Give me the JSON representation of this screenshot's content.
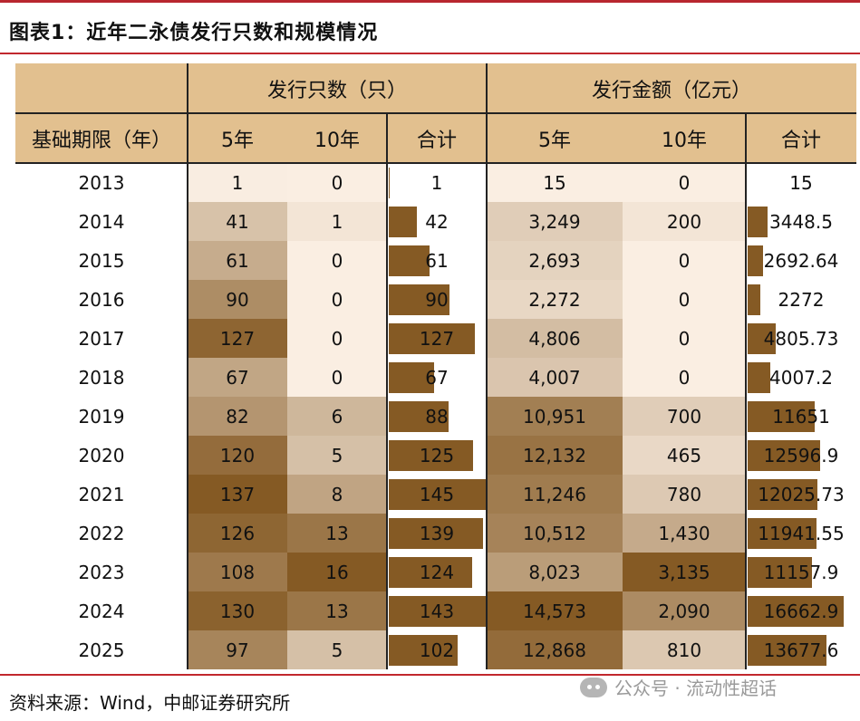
{
  "title": "图表1：近年二永债发行只数和规模情况",
  "source": "资料来源：Wind，中邮证券研究所",
  "watermark": "公众号 · 流动性超话",
  "colors": {
    "header": "#e2c08f",
    "bar": "#855a24",
    "title_rule": "#c1272d"
  },
  "header": {
    "group_count": "发行只数（只）",
    "group_amount": "发行金额（亿元）",
    "row_label": "基础期限（年）",
    "col_5y": "5年",
    "col_10y": "10年",
    "col_total": "合计"
  },
  "rows": [
    {
      "year": "2013",
      "c5": "1",
      "c10": "0",
      "ct": "1",
      "a5": "15",
      "a10": "0",
      "at": "15"
    },
    {
      "year": "2014",
      "c5": "41",
      "c10": "1",
      "ct": "42",
      "a5": "3,249",
      "a10": "200",
      "at": "3448.5"
    },
    {
      "year": "2015",
      "c5": "61",
      "c10": "0",
      "ct": "61",
      "a5": "2,693",
      "a10": "0",
      "at": "2692.64"
    },
    {
      "year": "2016",
      "c5": "90",
      "c10": "0",
      "ct": "90",
      "a5": "2,272",
      "a10": "0",
      "at": "2272"
    },
    {
      "year": "2017",
      "c5": "127",
      "c10": "0",
      "ct": "127",
      "a5": "4,806",
      "a10": "0",
      "at": "4805.73"
    },
    {
      "year": "2018",
      "c5": "67",
      "c10": "0",
      "ct": "67",
      "a5": "4,007",
      "a10": "0",
      "at": "4007.2"
    },
    {
      "year": "2019",
      "c5": "82",
      "c10": "6",
      "ct": "88",
      "a5": "10,951",
      "a10": "700",
      "at": "11651"
    },
    {
      "year": "2020",
      "c5": "120",
      "c10": "5",
      "ct": "125",
      "a5": "12,132",
      "a10": "465",
      "at": "12596.9"
    },
    {
      "year": "2021",
      "c5": "137",
      "c10": "8",
      "ct": "145",
      "a5": "11,246",
      "a10": "780",
      "at": "12025.73"
    },
    {
      "year": "2022",
      "c5": "126",
      "c10": "13",
      "ct": "139",
      "a5": "10,512",
      "a10": "1,430",
      "at": "11941.55"
    },
    {
      "year": "2023",
      "c5": "108",
      "c10": "16",
      "ct": "124",
      "a5": "8,023",
      "a10": "3,135",
      "at": "11157.9"
    },
    {
      "year": "2024",
      "c5": "130",
      "c10": "13",
      "ct": "143",
      "a5": "14,573",
      "a10": "2,090",
      "at": "16662.9"
    },
    {
      "year": "2025",
      "c5": "97",
      "c10": "5",
      "ct": "102",
      "a5": "12,868",
      "a10": "810",
      "at": "13677.6"
    }
  ]
}
